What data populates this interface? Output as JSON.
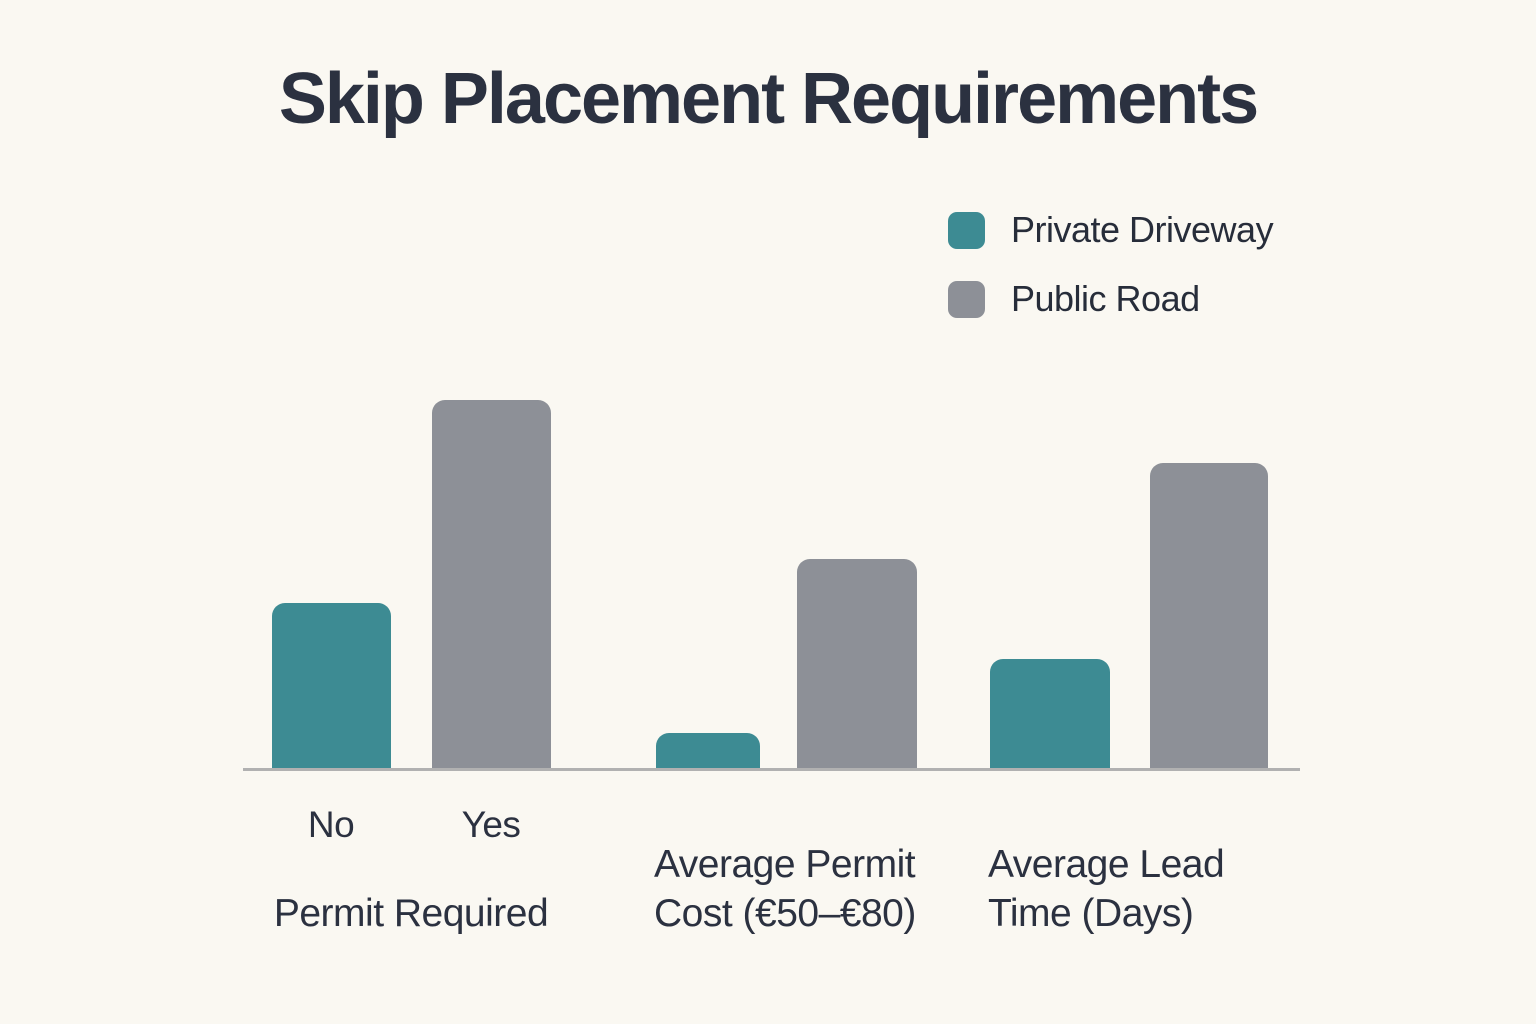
{
  "page": {
    "background": "#faf8f2"
  },
  "title": {
    "text": "Skip Placement Requirements",
    "color": "#2b3140"
  },
  "legend": {
    "items": [
      {
        "label": "Private Driveway",
        "color": "#3d8b93"
      },
      {
        "label": "Public Road",
        "color": "#8d9097"
      }
    ],
    "text_color": "#272d3a"
  },
  "axis": {
    "line_color": "#b1b1b1",
    "label_color": "#2b3140"
  },
  "chart_data": {
    "type": "bar",
    "title": "Skip Placement Requirements",
    "categories": [
      "Permit Required",
      "Average Permit Cost (€50–€80)",
      "Average Lead Time (Days)"
    ],
    "series": [
      {
        "name": "Private Driveway",
        "color": "#3d8b93",
        "values": [
          45,
          10,
          30
        ]
      },
      {
        "name": "Public Road",
        "color": "#8d9097",
        "values": [
          100,
          57,
          83
        ]
      }
    ],
    "bar_sublabels": [
      [
        "No",
        "Yes"
      ],
      [
        "",
        ""
      ],
      [
        "",
        ""
      ]
    ],
    "group_label_lines": [
      [
        "Permit Required"
      ],
      [
        "Average Permit",
        "Cost (€50–€80)"
      ],
      [
        "Average Lead",
        "Time (Days)"
      ]
    ],
    "xlabel": "",
    "ylabel": "",
    "ylim": [
      0,
      100
    ],
    "grid": false,
    "legend_position": "upper right",
    "value_scale": "relative bar height as % of tallest bar; no numeric axis shown"
  }
}
